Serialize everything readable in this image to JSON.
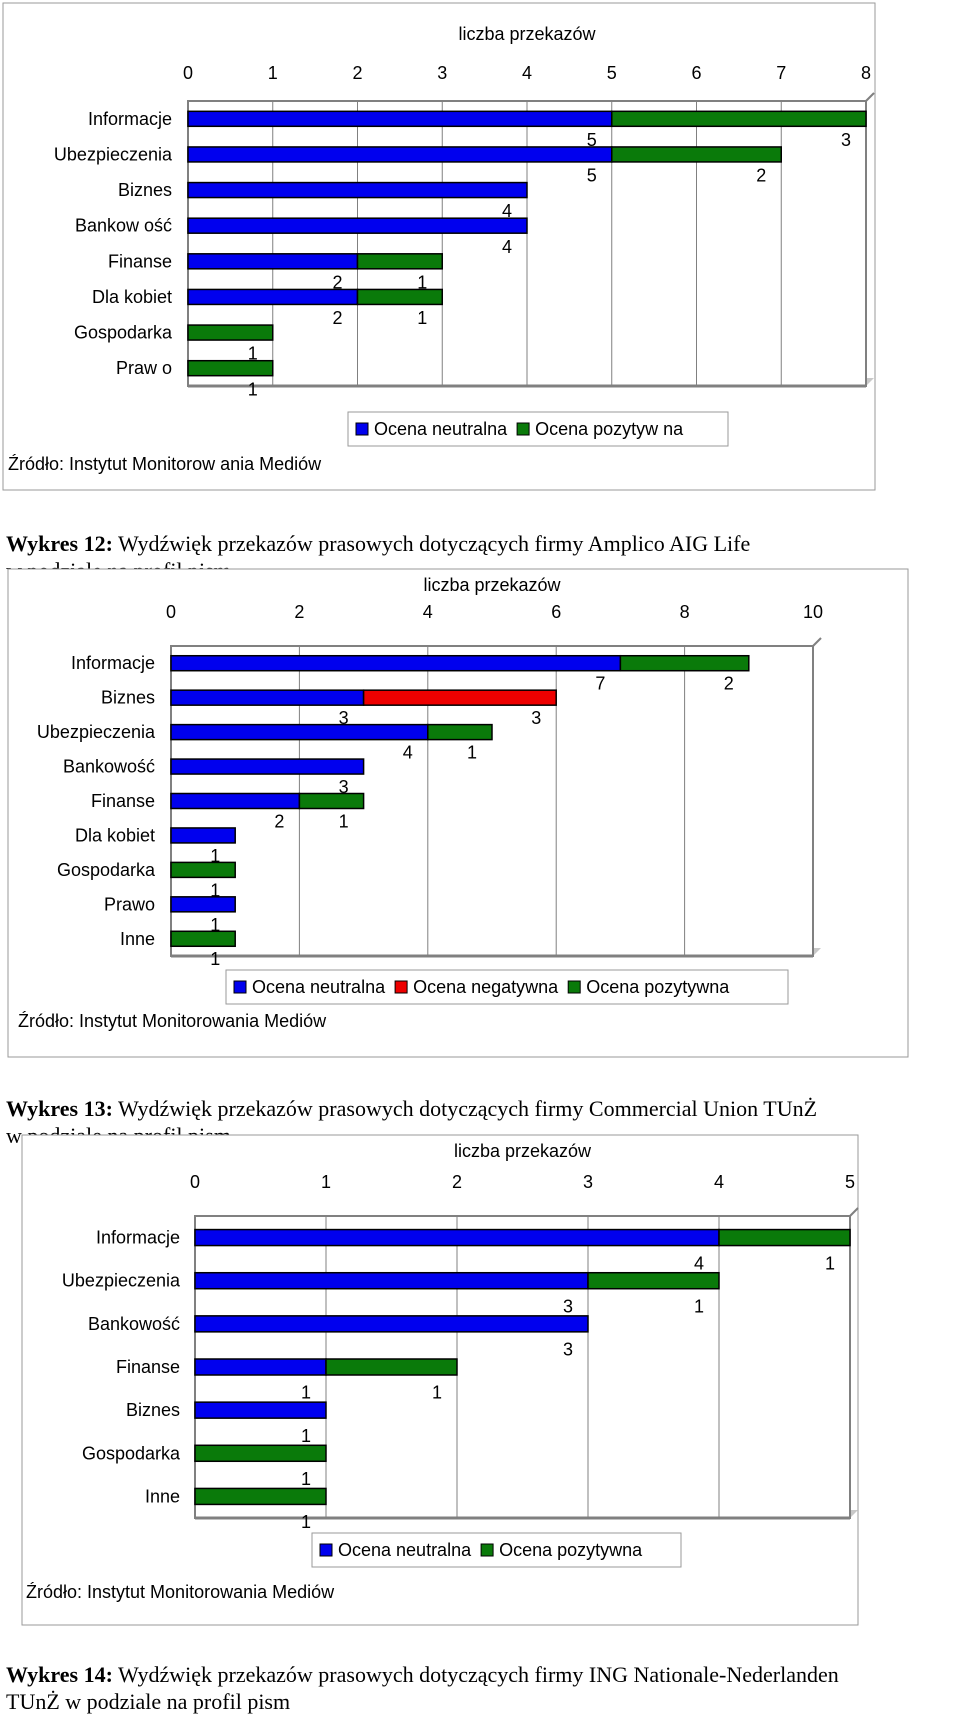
{
  "charts": [
    {
      "xlabel": "liczba przekazów",
      "source": "Źródło: Instytut Monitorow ania Mediów",
      "caption_bold": "Wykres 12:",
      "caption_text": " Wydźwięk przekazów prasowych dotyczących firmy Amplico AIG Life\nw podziale na profil pism",
      "chart_data": {
        "type": "bar",
        "orientation": "horizontal",
        "stacked": true,
        "xlim": [
          0,
          8
        ],
        "ticks": [
          0,
          1,
          2,
          3,
          4,
          5,
          6,
          7,
          8
        ],
        "categories": [
          "Informacje",
          "Ubezpieczenia",
          "Biznes",
          "Bankow ość",
          "Finanse",
          "Dla kobiet",
          "Gospodarka",
          "Praw o"
        ],
        "series": [
          {
            "name": "Ocena neutralna",
            "color": "#0000ee",
            "values": [
              5,
              5,
              4,
              4,
              2,
              2,
              0,
              0
            ]
          },
          {
            "name": "Ocena pozytyw na",
            "color": "#0a7a0a",
            "values": [
              3,
              2,
              0,
              0,
              1,
              1,
              1,
              1
            ]
          }
        ],
        "grid": true,
        "legend_position": "bottom"
      }
    },
    {
      "xlabel": "liczba przekazów",
      "source": "Źródło: Instytut Monitorowania Mediów",
      "caption_bold": "Wykres 13:",
      "caption_text": " Wydźwięk przekazów prasowych dotyczących firmy Commercial Union TUnŻ\nw podziale na profil pism",
      "chart_data": {
        "type": "bar",
        "orientation": "horizontal",
        "stacked": true,
        "xlim": [
          0,
          10
        ],
        "ticks": [
          0,
          2,
          4,
          6,
          8,
          10
        ],
        "categories": [
          "Informacje",
          "Biznes",
          "Ubezpieczenia",
          "Bankowość",
          "Finanse",
          "Dla kobiet",
          "Gospodarka",
          "Prawo",
          "Inne"
        ],
        "series": [
          {
            "name": "Ocena neutralna",
            "color": "#0000ee",
            "values": [
              7,
              3,
              4,
              3,
              2,
              1,
              0,
              1,
              0
            ]
          },
          {
            "name": "Ocena negatywna",
            "color": "#ee0000",
            "values": [
              0,
              3,
              0,
              0,
              0,
              0,
              0,
              0,
              0
            ]
          },
          {
            "name": "Ocena pozytywna",
            "color": "#0a7a0a",
            "values": [
              2,
              0,
              1,
              0,
              1,
              0,
              1,
              0,
              1
            ]
          }
        ],
        "grid": true,
        "legend_position": "bottom"
      }
    },
    {
      "xlabel": "liczba przekazów",
      "source": "Źródło: Instytut Monitorowania Mediów",
      "caption_bold": "Wykres 14:",
      "caption_text": " Wydźwięk przekazów prasowych dotyczących firmy ING Nationale-Nederlanden\nTUnŻ w podziale na profil pism",
      "chart_data": {
        "type": "bar",
        "orientation": "horizontal",
        "stacked": true,
        "xlim": [
          0,
          5
        ],
        "ticks": [
          0,
          1,
          2,
          3,
          4,
          5
        ],
        "categories": [
          "Informacje",
          "Ubezpieczenia",
          "Bankowość",
          "Finanse",
          "Biznes",
          "Gospodarka",
          "Inne"
        ],
        "series": [
          {
            "name": "Ocena neutralna",
            "color": "#0000ee",
            "values": [
              4,
              3,
              3,
              1,
              1,
              0,
              0
            ]
          },
          {
            "name": "Ocena pozytywna",
            "color": "#0a7a0a",
            "values": [
              1,
              1,
              0,
              1,
              0,
              1,
              1
            ]
          }
        ],
        "grid": true,
        "legend_position": "bottom"
      }
    }
  ]
}
